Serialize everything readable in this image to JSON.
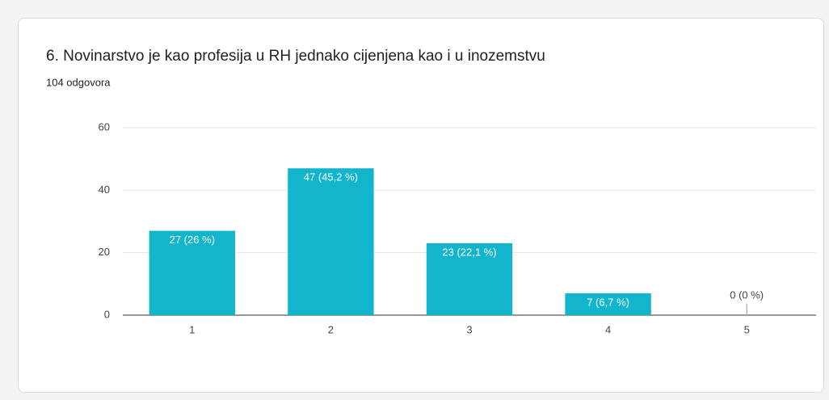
{
  "chart_data": {
    "type": "bar",
    "title": "6. Novinarstvo je kao profesija u RH jednako cijenjena kao i u inozemstvu",
    "subtitle": "104 odgovora",
    "categories": [
      "1",
      "2",
      "3",
      "4",
      "5"
    ],
    "values": [
      27,
      47,
      23,
      7,
      0
    ],
    "value_labels": [
      "27 (26 %)",
      "47 (45,2 %)",
      "23 (22,1 %)",
      "7 (6,7 %)",
      "0 (0 %)"
    ],
    "color": "#12b5cb",
    "ylim": [
      0,
      60
    ],
    "yticks": [
      0,
      20,
      40,
      60
    ],
    "grid": true
  }
}
